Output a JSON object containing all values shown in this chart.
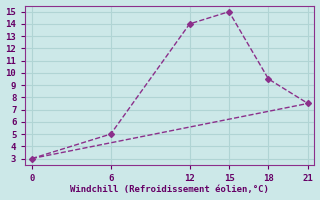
{
  "line1_x": [
    0,
    6,
    12,
    15,
    18,
    21
  ],
  "line1_y": [
    3,
    5,
    14,
    15,
    9.5,
    7.5
  ],
  "line2_x": [
    0,
    21
  ],
  "line2_y": [
    3,
    7.5
  ],
  "line_color": "#8b2f8b",
  "bg_color": "#cce8e8",
  "grid_color": "#b0d4d4",
  "xlabel": "Windchill (Refroidissement éolien,°C)",
  "xlim": [
    -0.5,
    21.5
  ],
  "ylim": [
    2.5,
    15.5
  ],
  "xticks": [
    0,
    6,
    12,
    15,
    18,
    21
  ],
  "yticks": [
    3,
    4,
    5,
    6,
    7,
    8,
    9,
    10,
    11,
    12,
    13,
    14,
    15
  ],
  "xlabel_color": "#660066",
  "tick_color": "#660066",
  "spine_color": "#8b2f8b",
  "line_width": 1.0,
  "marker": "D",
  "marker_size": 3,
  "label_fontsize": 6.5,
  "tick_fontsize": 6.5
}
